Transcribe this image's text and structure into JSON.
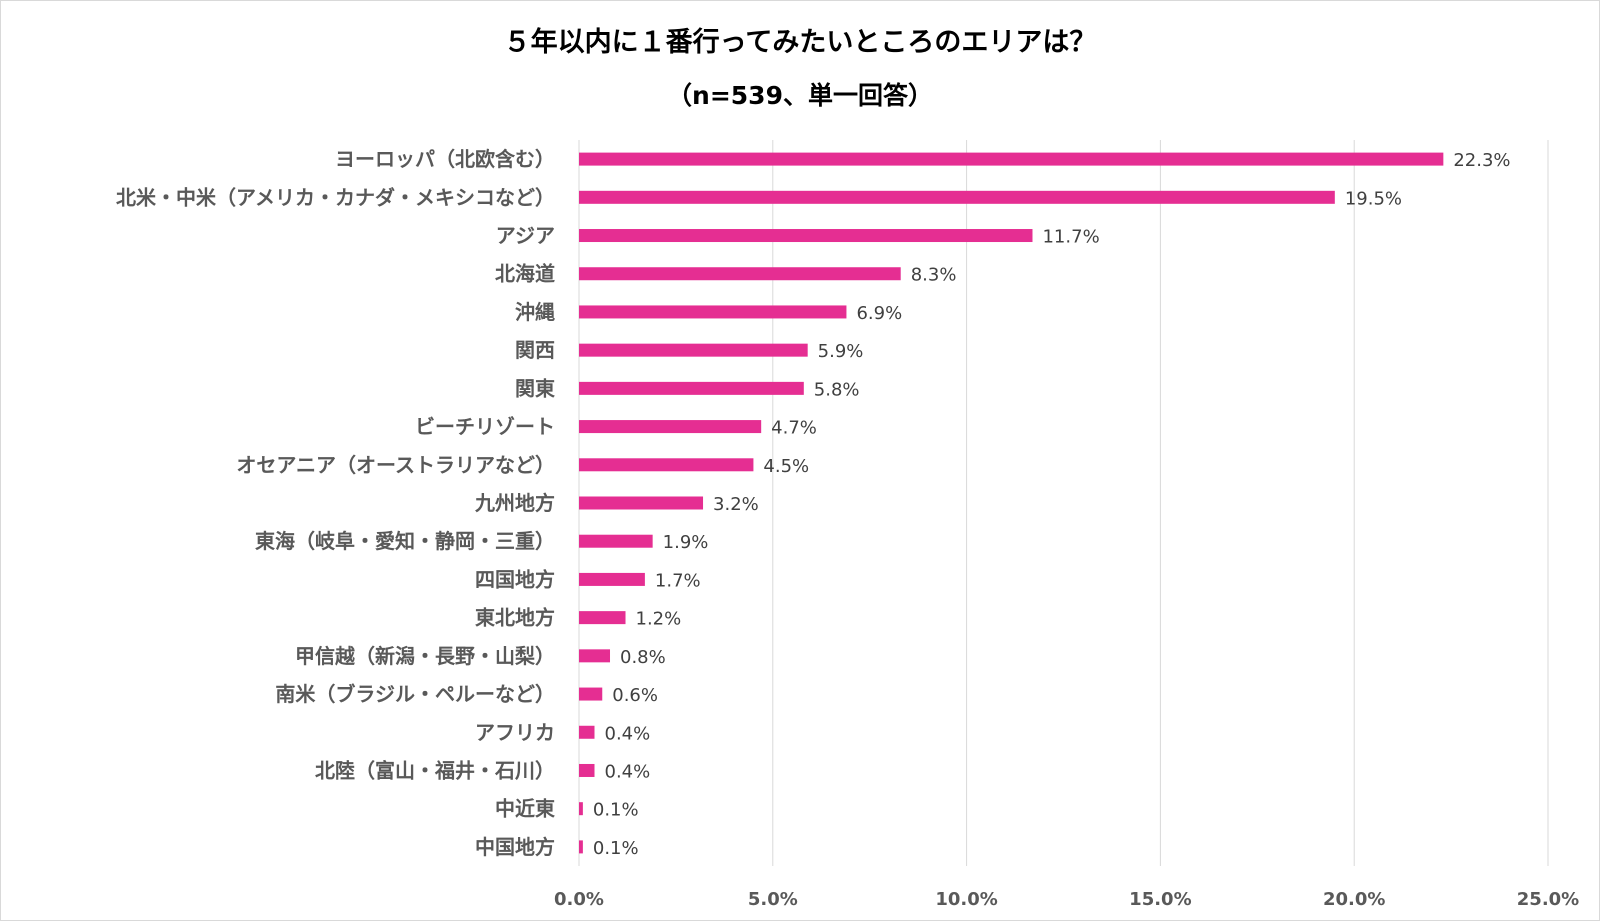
{
  "chart_data": {
    "type": "bar",
    "orientation": "horizontal",
    "title": "５年以内に１番行ってみたいところのエリアは？",
    "subtitle": "（n=539、単一回答）",
    "xlabel": "",
    "ylabel": "",
    "xlim": [
      0,
      25
    ],
    "x_ticks": [
      "0.0%",
      "5.0%",
      "10.0%",
      "15.0%",
      "20.0%",
      "25.0%"
    ],
    "x_tick_values": [
      0,
      5,
      10,
      15,
      20,
      25
    ],
    "grid": true,
    "legend": "none",
    "bar_color": "#E52E92",
    "categories": [
      "ヨーロッパ（北欧含む）",
      "北米・中米（アメリカ・カナダ・メキシコなど）",
      "アジア",
      "北海道",
      "沖縄",
      "関西",
      "関東",
      "ビーチリゾート",
      "オセアニア（オーストラリアなど）",
      "九州地方",
      "東海（岐阜・愛知・静岡・三重）",
      "四国地方",
      "東北地方",
      "甲信越（新潟・長野・山梨）",
      "南米（ブラジル・ペルーなど）",
      "アフリカ",
      "北陸（富山・福井・石川）",
      "中近東",
      "中国地方"
    ],
    "values": [
      22.3,
      19.5,
      11.7,
      8.3,
      6.9,
      5.9,
      5.8,
      4.7,
      4.5,
      3.2,
      1.9,
      1.7,
      1.2,
      0.8,
      0.6,
      0.4,
      0.4,
      0.1,
      0.1
    ],
    "value_labels": [
      "22.3%",
      "19.5%",
      "11.7%",
      "8.3%",
      "6.9%",
      "5.9%",
      "5.8%",
      "4.7%",
      "4.5%",
      "3.2%",
      "1.9%",
      "1.7%",
      "1.2%",
      "0.8%",
      "0.6%",
      "0.4%",
      "0.4%",
      "0.1%",
      "0.1%"
    ]
  }
}
